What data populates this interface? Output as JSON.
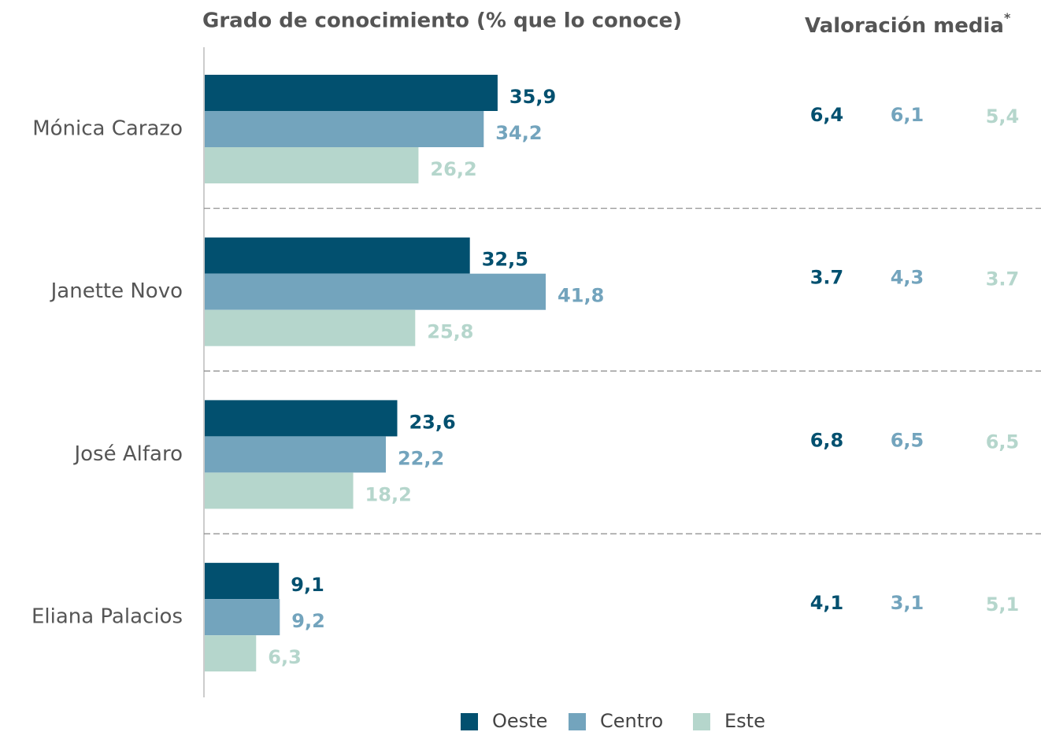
{
  "chart_data": {
    "type": "bar",
    "orientation": "horizontal",
    "title": "Grado de conocimiento (% que lo conoce)",
    "ratings_title": "Valoración media",
    "ratings_note": "*",
    "categories": [
      "Mónica Carazo",
      "Janette Novo",
      "José Alfaro",
      "Eliana Palacios"
    ],
    "series": [
      {
        "name": "Oeste",
        "color": "#02506f",
        "values": [
          35.9,
          32.5,
          23.6,
          9.1
        ],
        "value_labels": [
          "35,9",
          "32,5",
          "23,6",
          "9,1"
        ],
        "ratings": [
          6.4,
          3.7,
          6.8,
          4.1
        ],
        "rating_labels": [
          "6,4",
          "3.7",
          "6,8",
          "4,1"
        ]
      },
      {
        "name": "Centro",
        "color": "#73a4bd",
        "values": [
          34.2,
          41.8,
          22.2,
          9.2
        ],
        "value_labels": [
          "34,2",
          "41,8",
          "22,2",
          "9,2"
        ],
        "ratings": [
          6.1,
          4.3,
          6.5,
          3.1
        ],
        "rating_labels": [
          "6,1",
          "4,3",
          "6,5",
          "3,1"
        ]
      },
      {
        "name": "Este",
        "color": "#b5d6cc",
        "values": [
          26.2,
          25.8,
          18.2,
          6.3
        ],
        "value_labels": [
          "26,2",
          "25,8",
          "18,2",
          "6,3"
        ],
        "ratings": [
          5.4,
          3.7,
          6.5,
          5.1
        ],
        "rating_labels": [
          "5,4",
          "3.7",
          "6,5",
          "5,1"
        ]
      }
    ],
    "legend": "bottom"
  }
}
